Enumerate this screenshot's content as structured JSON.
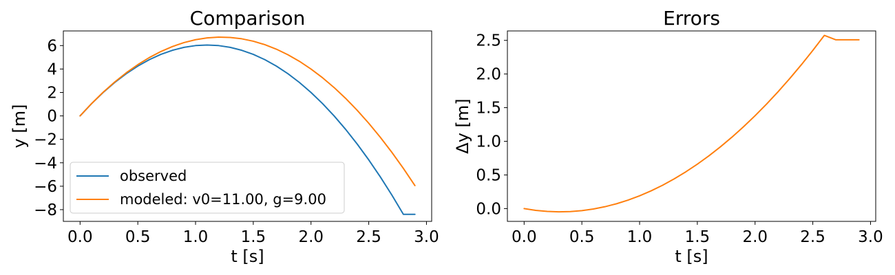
{
  "chart_data": [
    {
      "type": "line",
      "title": "Comparison",
      "xlabel": "t [s]",
      "ylabel": "y [m]",
      "xlim": [
        -0.145,
        3.045
      ],
      "ylim": [
        -9.0,
        7.25
      ],
      "xticks": [
        0.0,
        0.5,
        1.0,
        1.5,
        2.0,
        2.5,
        3.0
      ],
      "xtick_labels": [
        "0.0",
        "0.5",
        "1.0",
        "1.5",
        "2.0",
        "2.5",
        "3.0"
      ],
      "yticks": [
        -8,
        -6,
        -4,
        -2,
        0,
        2,
        4,
        6
      ],
      "ytick_labels": [
        "−8",
        "−6",
        "−4",
        "−2",
        "0",
        "2",
        "4",
        "6"
      ],
      "grid": false,
      "legend_position": "lower-left",
      "series": [
        {
          "name": "observed",
          "color": "#1f77b4",
          "x": [
            0.0,
            0.1,
            0.2,
            0.3,
            0.4,
            0.5,
            0.6,
            0.7,
            0.8,
            0.9,
            1.0,
            1.1,
            1.2,
            1.3,
            1.4,
            1.5,
            1.6,
            1.7,
            1.8,
            1.9,
            2.0,
            2.1,
            2.2,
            2.3,
            2.4,
            2.5,
            2.6,
            2.7,
            2.8,
            2.9
          ],
          "y": [
            0.0,
            1.05,
            2.0,
            2.85,
            3.6,
            4.25,
            4.8,
            5.25,
            5.6,
            5.85,
            6.0,
            6.05,
            6.0,
            5.85,
            5.6,
            5.25,
            4.8,
            4.25,
            3.6,
            2.85,
            2.0,
            1.05,
            0.0,
            -1.15,
            -2.4,
            -3.75,
            -5.2,
            -6.75,
            -8.4,
            -8.4
          ]
        },
        {
          "name": "modeled: v0=11.00, g=9.00",
          "color": "#ff7f0e",
          "x": [
            0.0,
            0.1,
            0.2,
            0.3,
            0.4,
            0.5,
            0.6,
            0.7,
            0.8,
            0.9,
            1.0,
            1.1,
            1.2,
            1.3,
            1.4,
            1.5,
            1.6,
            1.7,
            1.8,
            1.9,
            2.0,
            2.1,
            2.2,
            2.3,
            2.4,
            2.5,
            2.6,
            2.7,
            2.8,
            2.9
          ],
          "y": [
            0.0,
            1.055,
            2.02,
            2.895,
            3.68,
            4.375,
            4.98,
            5.495,
            5.92,
            6.255,
            6.5,
            6.655,
            6.72,
            6.695,
            6.58,
            6.375,
            6.08,
            5.695,
            5.22,
            4.655,
            4.0,
            3.255,
            2.42,
            1.495,
            0.48,
            -0.625,
            -1.82,
            -3.105,
            -4.48,
            -5.945
          ]
        }
      ]
    },
    {
      "type": "line",
      "title": "Errors",
      "xlabel": "t [s]",
      "ylabel": "Δy [m]",
      "xlim": [
        -0.145,
        3.045
      ],
      "ylim": [
        -0.19,
        2.64
      ],
      "xticks": [
        0.0,
        0.5,
        1.0,
        1.5,
        2.0,
        2.5,
        3.0
      ],
      "xtick_labels": [
        "0.0",
        "0.5",
        "1.0",
        "1.5",
        "2.0",
        "2.5",
        "3.0"
      ],
      "yticks": [
        0.0,
        0.5,
        1.0,
        1.5,
        2.0,
        2.5
      ],
      "ytick_labels": [
        "0.0",
        "0.5",
        "1.0",
        "1.5",
        "2.0",
        "2.5"
      ],
      "grid": false,
      "series": [
        {
          "color": "#ff7f0e",
          "x": [
            0.0,
            0.1,
            0.2,
            0.3,
            0.4,
            0.5,
            0.6,
            0.7,
            0.8,
            0.9,
            1.0,
            1.1,
            1.2,
            1.3,
            1.4,
            1.5,
            1.6,
            1.7,
            1.8,
            1.9,
            2.0,
            2.1,
            2.2,
            2.3,
            2.4,
            2.5,
            2.6,
            2.7,
            2.8,
            2.9
          ],
          "y": [
            0.0,
            -0.026,
            -0.042,
            -0.048,
            -0.044,
            -0.03,
            -0.006,
            0.028,
            0.072,
            0.126,
            0.19,
            0.264,
            0.348,
            0.442,
            0.546,
            0.66,
            0.784,
            0.918,
            1.062,
            1.216,
            1.38,
            1.554,
            1.738,
            1.932,
            2.136,
            2.35,
            2.574,
            2.508,
            2.508,
            2.508
          ]
        }
      ]
    }
  ]
}
